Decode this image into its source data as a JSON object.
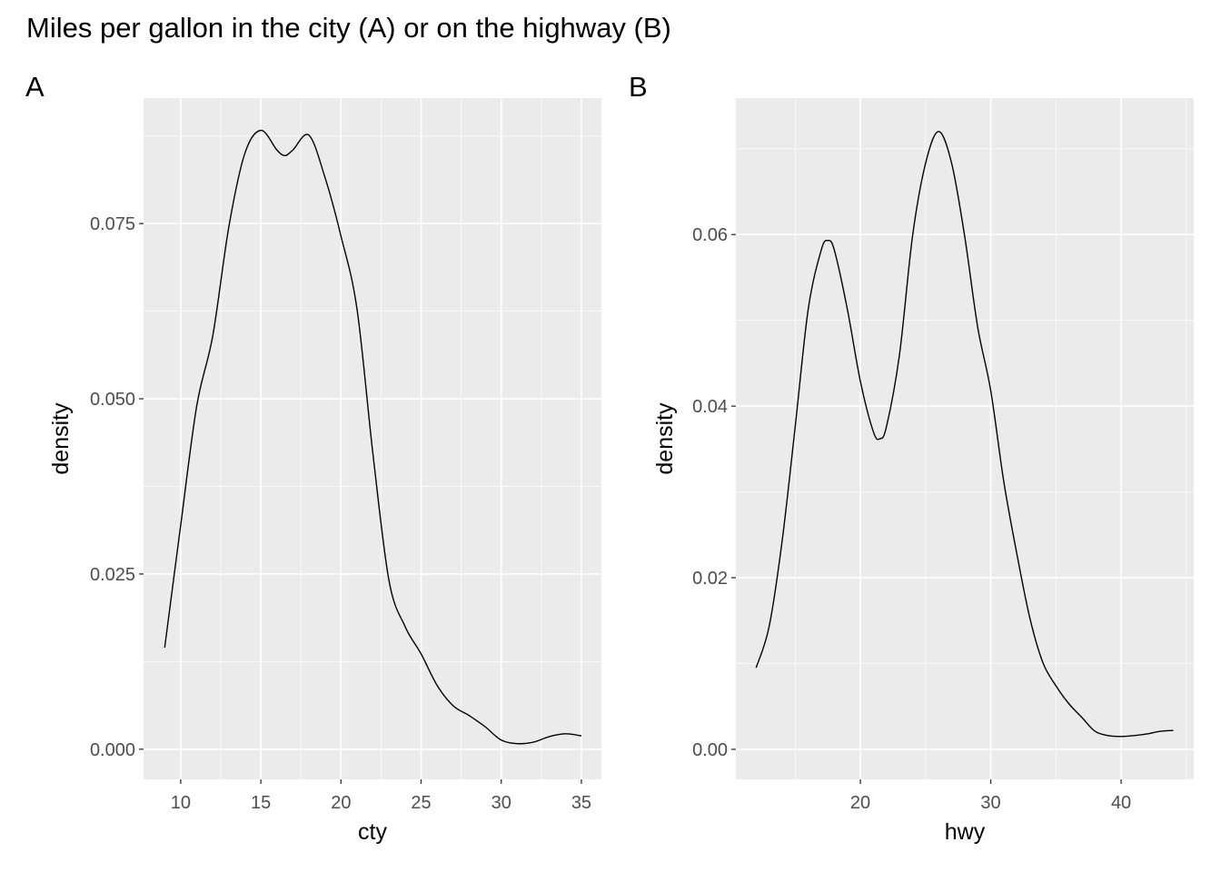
{
  "title": "Miles per gallon in the city (A) or on the highway (B)",
  "chart_data": [
    {
      "type": "line",
      "tag": "A",
      "xlabel": "cty",
      "ylabel": "density",
      "xlim": [
        7.68,
        36.25
      ],
      "ylim": [
        -0.0043,
        0.0929
      ],
      "xticks": [
        10,
        15,
        20,
        25,
        30,
        35
      ],
      "xtick_labels": [
        "10",
        "15",
        "20",
        "25",
        "30",
        "35"
      ],
      "xminor": [
        12.5,
        17.5,
        22.5,
        27.5,
        32.5
      ],
      "yticks": [
        0,
        0.025,
        0.05,
        0.075
      ],
      "ytick_labels": [
        "0.000",
        "0.025",
        "0.050",
        "0.075"
      ],
      "yminor": [
        0.0125,
        0.0375,
        0.0625,
        0.0875
      ],
      "grid": true,
      "x": [
        9,
        10,
        11,
        12,
        13,
        14,
        15,
        16,
        16.5,
        17,
        18,
        19,
        20,
        21,
        22,
        23,
        24,
        25,
        26,
        27,
        28,
        29,
        30,
        31,
        32,
        33,
        34,
        35
      ],
      "y": [
        0.0145,
        0.032,
        0.049,
        0.059,
        0.0745,
        0.085,
        0.0883,
        0.0855,
        0.0847,
        0.0855,
        0.0876,
        0.0816,
        0.0732,
        0.0628,
        0.042,
        0.024,
        0.0175,
        0.0136,
        0.0091,
        0.0062,
        0.0048,
        0.0032,
        0.0013,
        0.0008,
        0.001,
        0.0018,
        0.0022,
        0.0019
      ]
    },
    {
      "type": "line",
      "tag": "B",
      "xlabel": "hwy",
      "ylabel": "density",
      "xlim": [
        10.45,
        45.57
      ],
      "ylim": [
        -0.0035,
        0.0759
      ],
      "xticks": [
        20,
        30,
        40
      ],
      "xtick_labels": [
        "20",
        "30",
        "40"
      ],
      "xminor": [
        15,
        25,
        35,
        45
      ],
      "yticks": [
        0,
        0.02,
        0.04,
        0.06
      ],
      "ytick_labels": [
        "0.00",
        "0.02",
        "0.04",
        "0.06"
      ],
      "yminor": [
        0.01,
        0.03,
        0.05,
        0.07
      ],
      "grid": true,
      "x": [
        12,
        13,
        14,
        15,
        16,
        17,
        17.5,
        18,
        19,
        20,
        21,
        21.5,
        22,
        23,
        24,
        25,
        26,
        27,
        28,
        29,
        30,
        31,
        32,
        33,
        34,
        35,
        36,
        37,
        38,
        39,
        40,
        41,
        42,
        43,
        44
      ],
      "y": [
        0.0095,
        0.0143,
        0.0243,
        0.0376,
        0.0513,
        0.0582,
        0.0593,
        0.0582,
        0.0513,
        0.0429,
        0.037,
        0.0362,
        0.0376,
        0.046,
        0.0598,
        0.0683,
        0.072,
        0.0683,
        0.0598,
        0.0492,
        0.0418,
        0.0312,
        0.0228,
        0.0153,
        0.0101,
        0.0074,
        0.0053,
        0.0037,
        0.0021,
        0.0016,
        0.0015,
        0.0016,
        0.0018,
        0.0021,
        0.0022
      ]
    }
  ]
}
